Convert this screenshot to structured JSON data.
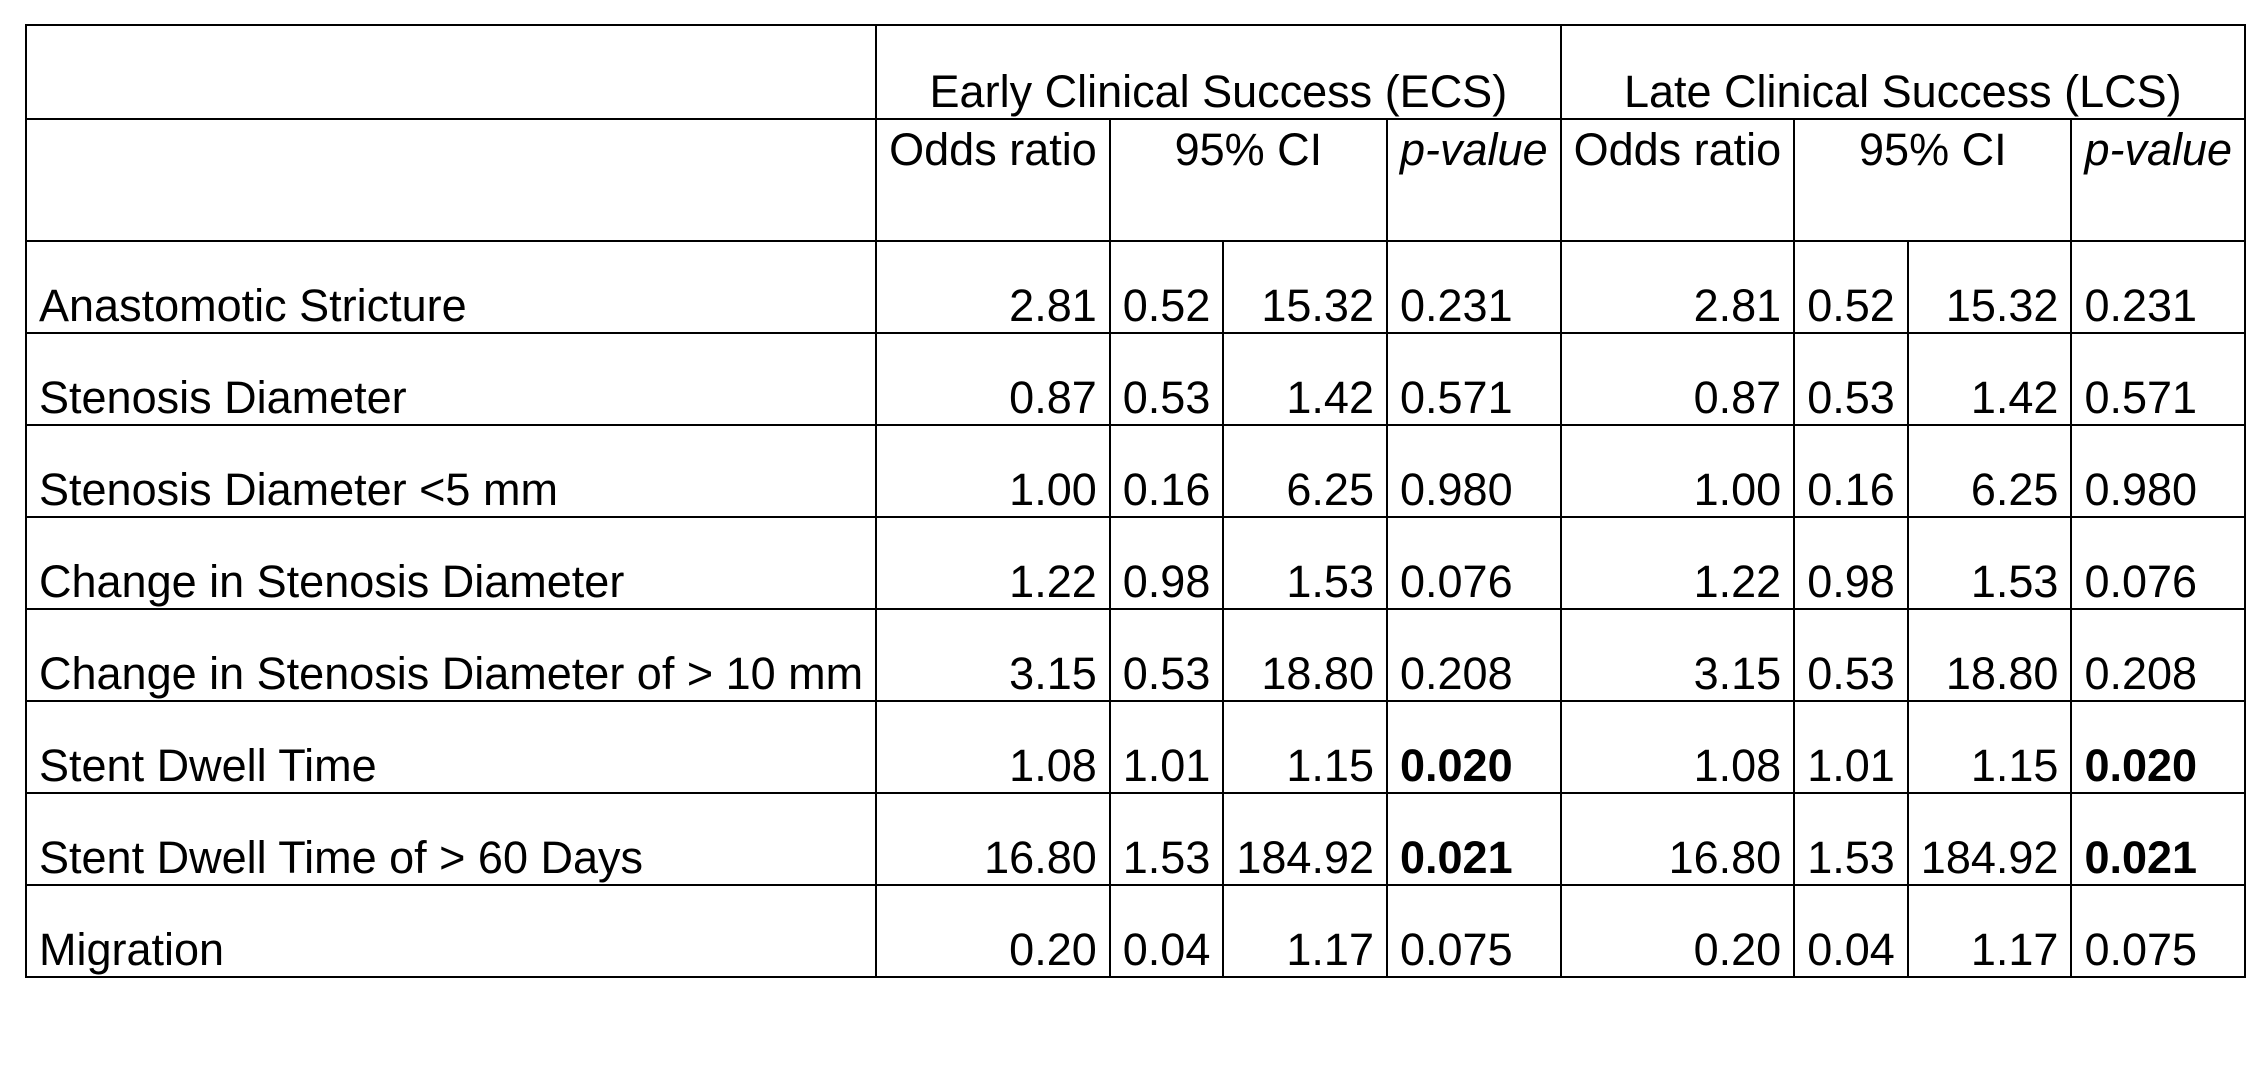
{
  "groups": {
    "ecs": "Early Clinical Success (ECS)",
    "lcs": "Late Clinical Success (LCS)"
  },
  "subheaders": {
    "odds_ratio": "Odds ratio",
    "ci": "95% CI",
    "p_value": "p-value"
  },
  "rows": [
    {
      "label": "Anastomotic Stricture",
      "ecs": {
        "or": "2.81",
        "lo": "0.52",
        "hi": "15.32",
        "p": "0.231"
      },
      "lcs": {
        "or": "2.81",
        "lo": "0.52",
        "hi": "15.32",
        "p": "0.231"
      },
      "significant": false
    },
    {
      "label": "Stenosis Diameter",
      "ecs": {
        "or": "0.87",
        "lo": "0.53",
        "hi": "1.42",
        "p": "0.571"
      },
      "lcs": {
        "or": "0.87",
        "lo": "0.53",
        "hi": "1.42",
        "p": "0.571"
      },
      "significant": false
    },
    {
      "label": "Stenosis Diameter <5 mm",
      "ecs": {
        "or": "1.00",
        "lo": "0.16",
        "hi": "6.25",
        "p": "0.980"
      },
      "lcs": {
        "or": "1.00",
        "lo": "0.16",
        "hi": "6.25",
        "p": "0.980"
      },
      "significant": false
    },
    {
      "label": "Change in Stenosis Diameter",
      "ecs": {
        "or": "1.22",
        "lo": "0.98",
        "hi": "1.53",
        "p": "0.076"
      },
      "lcs": {
        "or": "1.22",
        "lo": "0.98",
        "hi": "1.53",
        "p": "0.076"
      },
      "significant": false
    },
    {
      "label": "Change in Stenosis Diameter of > 10 mm",
      "ecs": {
        "or": "3.15",
        "lo": "0.53",
        "hi": "18.80",
        "p": "0.208"
      },
      "lcs": {
        "or": "3.15",
        "lo": "0.53",
        "hi": "18.80",
        "p": "0.208"
      },
      "significant": false
    },
    {
      "label": "Stent Dwell Time",
      "ecs": {
        "or": "1.08",
        "lo": "1.01",
        "hi": "1.15",
        "p": "0.020"
      },
      "lcs": {
        "or": "1.08",
        "lo": "1.01",
        "hi": "1.15",
        "p": "0.020"
      },
      "significant": true
    },
    {
      "label": "Stent Dwell Time of > 60 Days",
      "ecs": {
        "or": "16.80",
        "lo": "1.53",
        "hi": "184.92",
        "p": "0.021"
      },
      "lcs": {
        "or": "16.80",
        "lo": "1.53",
        "hi": "184.92",
        "p": "0.021"
      },
      "significant": true
    },
    {
      "label": "Migration",
      "ecs": {
        "or": "0.20",
        "lo": "0.04",
        "hi": "1.17",
        "p": "0.075"
      },
      "lcs": {
        "or": "0.20",
        "lo": "0.04",
        "hi": "1.17",
        "p": "0.075"
      },
      "significant": false
    }
  ]
}
